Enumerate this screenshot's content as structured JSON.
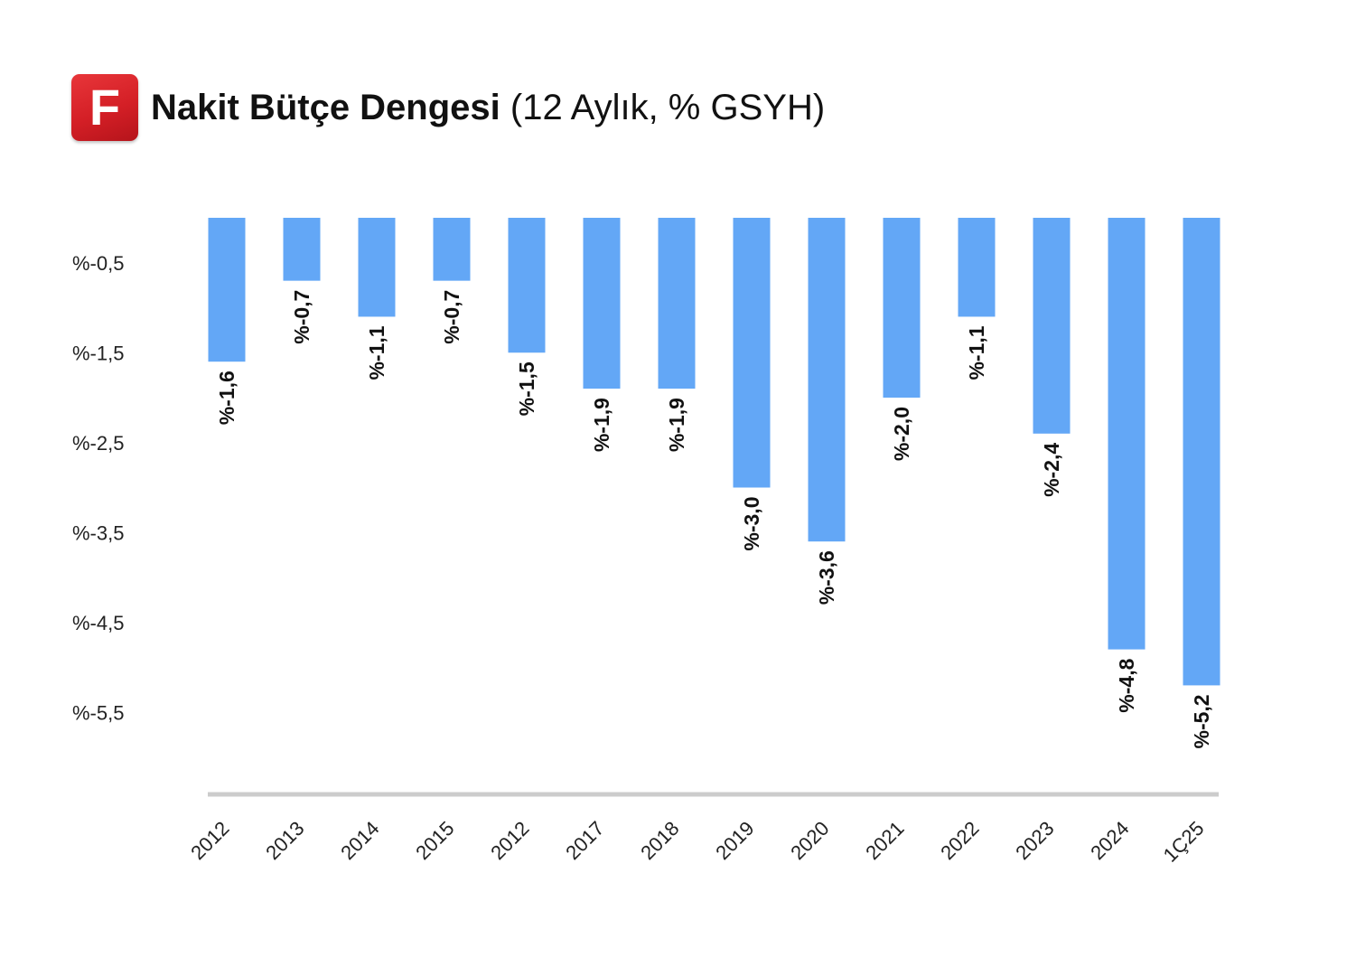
{
  "header": {
    "logo_letter": "F",
    "title_bold": "Nakit Bütçe Dengesi",
    "title_light": "(12 Aylık, % GSYH)"
  },
  "colors": {
    "bar": "#63a7f6",
    "baseline": "#cccccc",
    "logo": "#d41f26",
    "text": "#111111"
  },
  "chart_data": {
    "type": "bar",
    "title": "Nakit Bütçe Dengesi (12 Aylık, % GSYH)",
    "categories": [
      "2012",
      "2013",
      "2014",
      "2015",
      "2012",
      "2017",
      "2018",
      "2019",
      "2020",
      "2021",
      "2022",
      "2023",
      "2024",
      "1Ç25"
    ],
    "values": [
      -1.6,
      -0.7,
      -1.1,
      -0.7,
      -1.5,
      -1.9,
      -1.9,
      -3.0,
      -3.6,
      -2.0,
      -1.1,
      -2.4,
      -4.8,
      -5.2
    ],
    "value_labels": [
      "%-1,6",
      "%-0,7",
      "%-1,1",
      "%-0,7",
      "%-1,5",
      "%-1,9",
      "%-1,9",
      "%-3,0",
      "%-3,6",
      "%-2,0",
      "%-1,1",
      "%-2,4",
      "%-4,8",
      "%-5,2"
    ],
    "yticks": [
      -0.5,
      -1.5,
      -2.5,
      -3.5,
      -4.5,
      -5.5
    ],
    "ytick_labels": [
      "%-0,5",
      "%-1,5",
      "%-2,5",
      "%-3,5",
      "%-4,5",
      "%-5,5"
    ],
    "ylim": [
      -6.4,
      0
    ],
    "xlabel": "",
    "ylabel": "",
    "grid": false,
    "legend": "none"
  }
}
